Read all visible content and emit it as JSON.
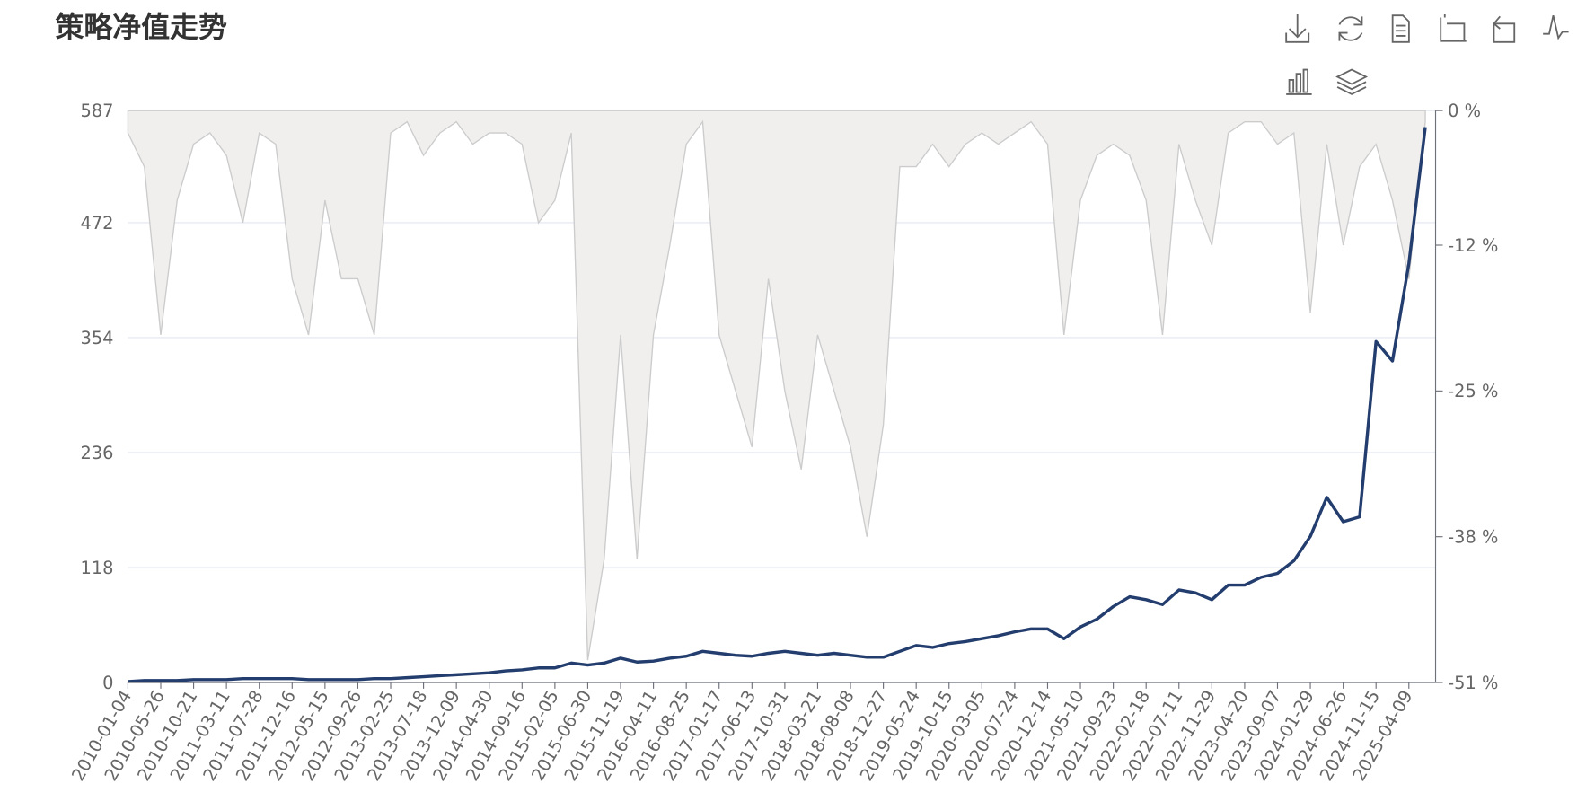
{
  "chart_data": {
    "type": "line",
    "title": "策略净值走势",
    "categories": [
      "2010-01-04",
      null,
      "2010-05-26",
      null,
      "2010-10-21",
      null,
      "2011-03-11",
      null,
      "2011-07-28",
      null,
      "2011-12-16",
      null,
      "2012-05-15",
      null,
      "2012-09-26",
      null,
      "2013-02-25",
      null,
      "2013-07-18",
      null,
      "2013-12-09",
      null,
      "2014-04-30",
      null,
      "2014-09-16",
      null,
      "2015-02-05",
      null,
      "2015-06-30",
      null,
      "2015-11-19",
      null,
      "2016-04-11",
      null,
      "2016-08-25",
      null,
      "2017-01-17",
      null,
      "2017-06-13",
      null,
      "2017-10-31",
      null,
      "2018-03-21",
      null,
      "2018-08-08",
      null,
      "2018-12-27",
      null,
      "2019-05-24",
      null,
      "2019-10-15",
      null,
      "2020-03-05",
      null,
      "2020-07-24",
      null,
      "2020-12-14",
      null,
      "2021-05-10",
      null,
      "2021-09-23",
      null,
      "2022-02-18",
      null,
      "2022-07-11",
      null,
      "2022-11-29",
      null,
      "2023-04-20",
      null,
      "2023-09-07",
      null,
      "2024-01-29",
      null,
      "2024-06-26",
      null,
      "2024-11-15",
      null,
      "2025-04-09",
      null
    ],
    "series": [
      {
        "color": "#233e6e",
        "values": [
          1,
          2,
          2,
          2,
          3,
          3,
          3,
          4,
          4,
          4,
          4,
          3,
          3,
          3,
          3,
          4,
          4,
          5,
          6,
          7,
          8,
          9,
          10,
          12,
          13,
          15,
          15,
          20,
          18,
          20,
          25,
          21,
          22,
          25,
          27,
          32,
          30,
          28,
          27,
          30,
          32,
          30,
          28,
          30,
          28,
          26,
          26,
          32,
          38,
          36,
          40,
          42,
          45,
          48,
          52,
          55,
          55,
          45,
          57,
          65,
          78,
          88,
          85,
          80,
          95,
          92,
          85,
          100,
          100,
          108,
          112,
          125,
          150,
          190,
          165,
          170,
          350,
          330,
          430,
          570
        ]
      },
      {
        "type": "area",
        "axis": "y2",
        "color": "#cccccc",
        "fill": "#f0efee",
        "values": [
          -2,
          -5,
          -20,
          -8,
          -3,
          -2,
          -4,
          -10,
          -2,
          -3,
          -15,
          -20,
          -8,
          -15,
          -15,
          -20,
          -2,
          -1,
          -4,
          -2,
          -1,
          -3,
          -2,
          -2,
          -3,
          -10,
          -8,
          -2,
          -49,
          -40,
          -20,
          -40,
          -20,
          -12,
          -3,
          -1,
          -20,
          -25,
          -30,
          -15,
          -25,
          -32,
          -20,
          -25,
          -30,
          -38,
          -28,
          -5,
          -5,
          -3,
          -5,
          -3,
          -2,
          -3,
          -2,
          -1,
          -3,
          -20,
          -8,
          -4,
          -3,
          -4,
          -8,
          -20,
          -3,
          -8,
          -12,
          -2,
          -1,
          -1,
          -3,
          -2,
          -18,
          -3,
          -12,
          -5,
          -3,
          -8,
          -15,
          -1
        ]
      }
    ],
    "ylim": [
      0,
      587
    ],
    "yticks": [
      0,
      118,
      236,
      354,
      472,
      587
    ],
    "y2lim": [
      -51,
      0
    ],
    "y2ticks": [
      {
        "value": 0,
        "label": "0 %"
      },
      {
        "value": -12,
        "label": "-12 %"
      },
      {
        "value": -25,
        "label": "-25 %"
      },
      {
        "value": -38,
        "label": "-38 %"
      },
      {
        "value": -51,
        "label": "-51 %"
      }
    ],
    "grid": true
  }
}
